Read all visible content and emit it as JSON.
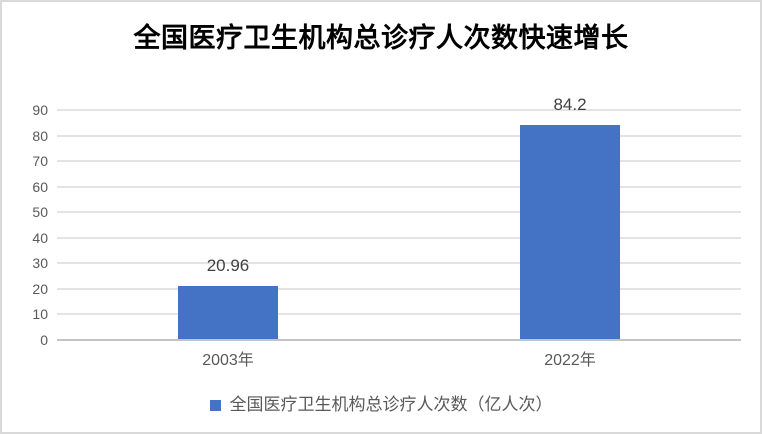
{
  "title": "全国医疗卫生机构总诊疗人次数快速增长",
  "chart_data": {
    "type": "bar",
    "title": "全国医疗卫生机构总诊疗人次数快速增长",
    "categories": [
      "2003年",
      "2022年"
    ],
    "values": [
      20.96,
      84.2
    ],
    "data_labels": [
      "20.96",
      "84.2"
    ],
    "series_name": "全国医疗卫生机构总诊疗人次数（亿人次）",
    "xlabel": "",
    "ylabel": "",
    "ylim": [
      0,
      90
    ],
    "yticks": [
      0,
      10,
      20,
      30,
      40,
      50,
      60,
      70,
      80,
      90
    ],
    "grid": true,
    "legend_position": "bottom"
  },
  "legend": {
    "label": "全国医疗卫生机构总诊疗人次数（亿人次）"
  },
  "colors": {
    "bar": "#4472c4",
    "gridline": "#e3e3e3",
    "axis_line": "#c4c4c4",
    "tick_label": "#595959",
    "data_label": "#404040",
    "title": "#000000",
    "border": "#d9d9d9"
  }
}
